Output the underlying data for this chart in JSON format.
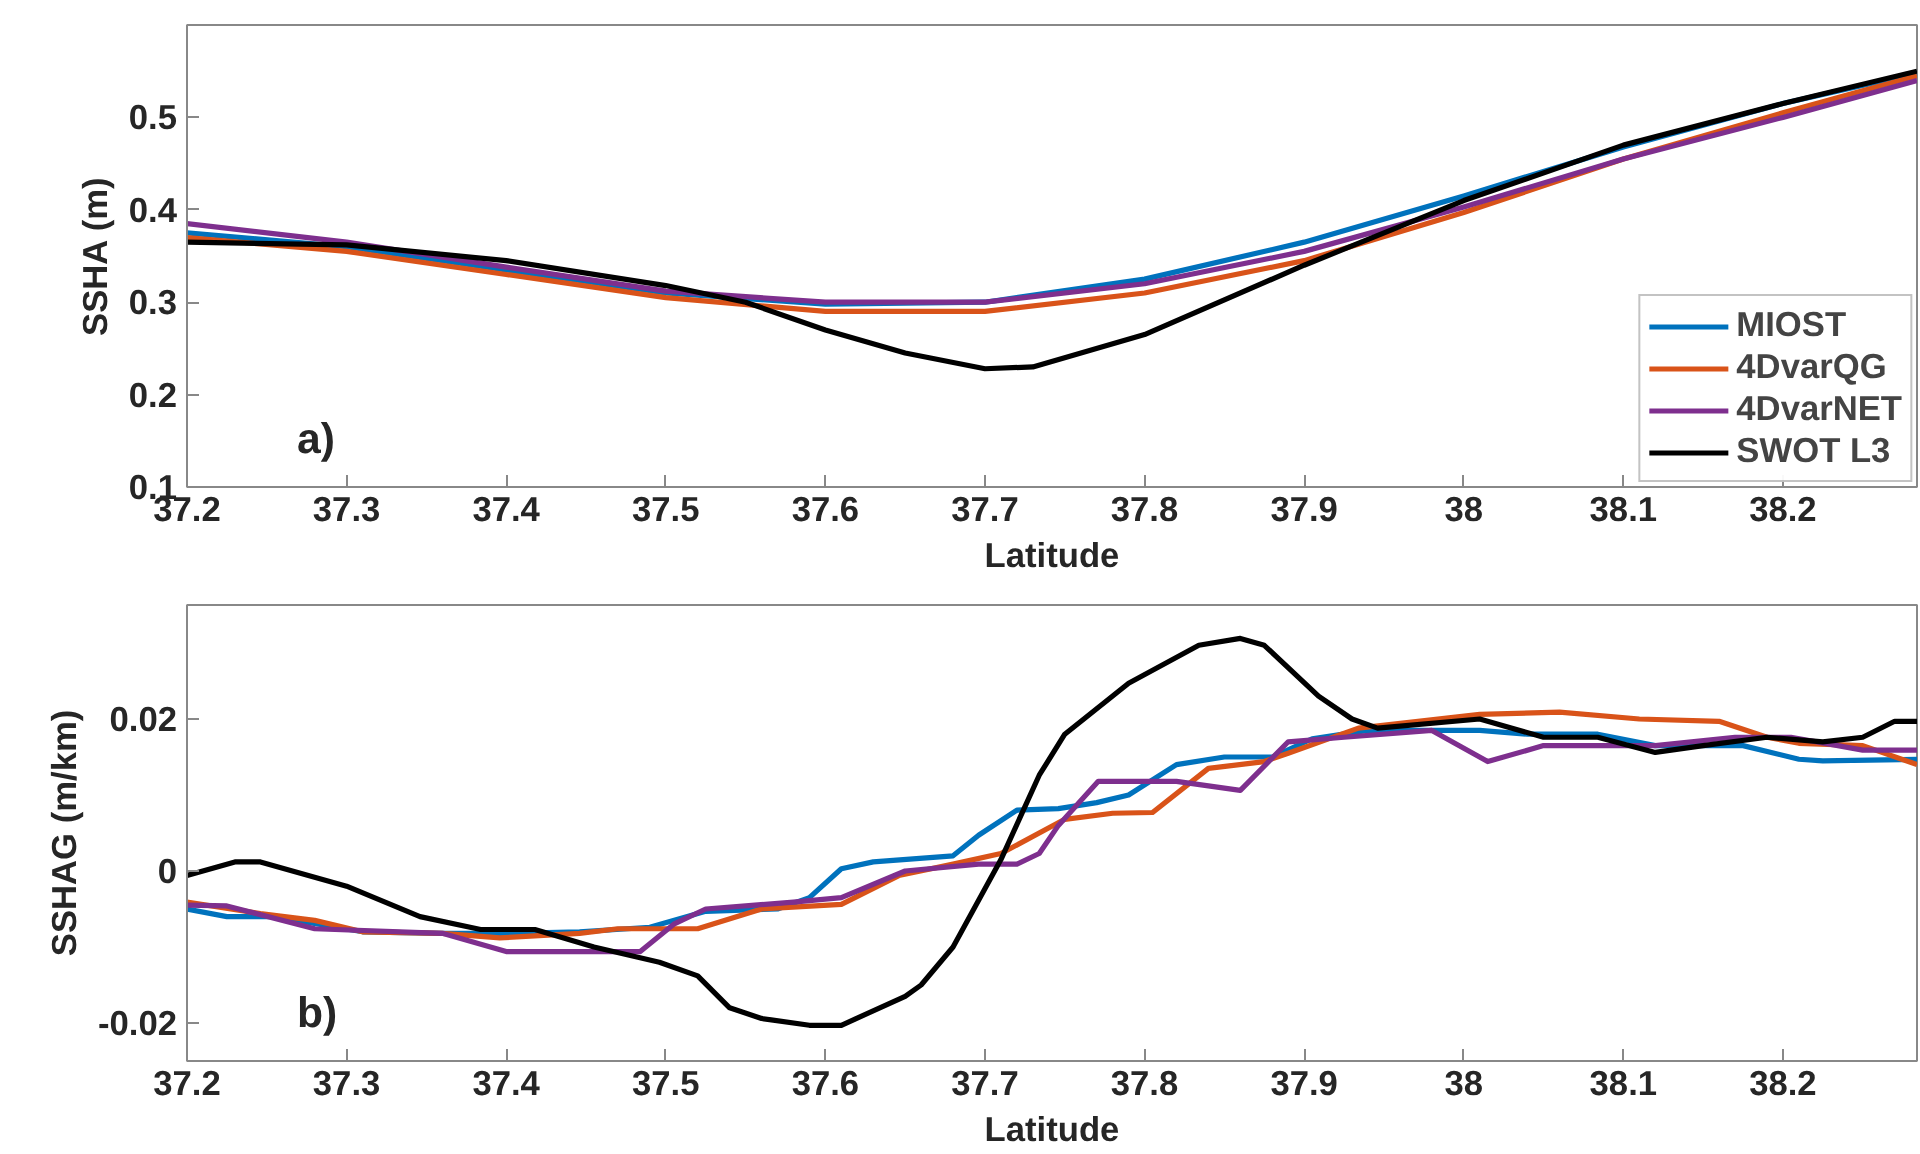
{
  "chart_data": [
    {
      "type": "line",
      "xlabel": "Latitude",
      "ylabel": "SSHA (m)",
      "annotations": [
        "a)"
      ],
      "legend": "bottom right",
      "grid": false,
      "line_style": "solid",
      "xlim": [
        37.2,
        38.284
      ],
      "xticks": [
        37.2,
        37.3,
        37.4,
        37.5,
        37.6,
        37.7,
        37.8,
        37.9,
        38,
        38.1,
        38.2
      ],
      "ylim": [
        0.1,
        0.6
      ],
      "yticks": [
        0.1,
        0.2,
        0.3,
        0.4,
        0.5
      ],
      "series": [
        {
          "name": "MIOST",
          "color": "#0072bd",
          "x": [
            37.2,
            37.3,
            37.4,
            37.5,
            37.6,
            37.7,
            37.8,
            37.9,
            38.0,
            38.1,
            38.2,
            38.284
          ],
          "values": [
            0.375,
            0.36,
            0.335,
            0.31,
            0.298,
            0.3,
            0.325,
            0.365,
            0.415,
            0.468,
            0.515,
            0.548
          ]
        },
        {
          "name": "4DvarQG",
          "color": "#d95319",
          "x": [
            37.2,
            37.3,
            37.4,
            37.5,
            37.6,
            37.7,
            37.8,
            37.9,
            38.0,
            38.1,
            38.2,
            38.284
          ],
          "values": [
            0.37,
            0.355,
            0.33,
            0.305,
            0.29,
            0.29,
            0.31,
            0.345,
            0.397,
            0.455,
            0.505,
            0.545
          ]
        },
        {
          "name": "4DvarNET",
          "color": "#7e2f8e",
          "x": [
            37.2,
            37.3,
            37.4,
            37.5,
            37.6,
            37.7,
            37.8,
            37.9,
            38.0,
            38.1,
            38.2,
            38.284
          ],
          "values": [
            0.385,
            0.365,
            0.338,
            0.312,
            0.3,
            0.3,
            0.32,
            0.355,
            0.403,
            0.455,
            0.5,
            0.54
          ]
        },
        {
          "name": "SWOT L3",
          "color": "#000000",
          "x": [
            37.2,
            37.3,
            37.4,
            37.5,
            37.55,
            37.6,
            37.65,
            37.7,
            37.73,
            37.8,
            37.9,
            38.0,
            38.1,
            38.2,
            38.284
          ],
          "values": [
            0.365,
            0.362,
            0.345,
            0.318,
            0.3,
            0.27,
            0.245,
            0.228,
            0.23,
            0.265,
            0.34,
            0.41,
            0.47,
            0.515,
            0.55
          ]
        }
      ]
    },
    {
      "type": "line",
      "xlabel": "Latitude",
      "ylabel": "SSHAG (m/km)",
      "annotations": [
        "b)"
      ],
      "grid": false,
      "line_style": "solid",
      "xlim": [
        37.2,
        38.284
      ],
      "xticks": [
        37.2,
        37.3,
        37.4,
        37.5,
        37.6,
        37.7,
        37.8,
        37.9,
        38,
        38.1,
        38.2
      ],
      "ylim": [
        -0.025,
        0.035
      ],
      "yticks": [
        -0.02,
        0,
        0.02
      ],
      "series": [
        {
          "color": "#0072bd",
          "x": [
            37.2,
            37.225,
            37.255,
            37.31,
            37.36,
            37.405,
            37.446,
            37.49,
            37.525,
            37.57,
            37.59,
            37.61,
            37.63,
            37.68,
            37.696,
            37.72,
            37.746,
            37.77,
            37.79,
            37.82,
            37.85,
            37.88,
            37.905,
            37.94,
            38.01,
            38.04,
            38.084,
            38.12,
            38.175,
            38.21,
            38.225,
            38.284
          ],
          "values": [
            -0.005,
            -0.006,
            -0.006,
            -0.008,
            -0.0082,
            -0.0082,
            -0.008,
            -0.0074,
            -0.0053,
            -0.005,
            -0.0035,
            0.0003,
            0.0012,
            0.002,
            0.0047,
            0.008,
            0.0082,
            0.009,
            0.01,
            0.014,
            0.015,
            0.015,
            0.0174,
            0.0185,
            0.0185,
            0.018,
            0.018,
            0.0165,
            0.0165,
            0.0147,
            0.0145,
            0.0147
          ]
        },
        {
          "color": "#d95319",
          "x": [
            37.2,
            37.246,
            37.28,
            37.31,
            37.36,
            37.396,
            37.446,
            37.47,
            37.52,
            37.56,
            37.61,
            37.646,
            37.68,
            37.71,
            37.75,
            37.78,
            37.805,
            37.84,
            37.875,
            37.89,
            37.934,
            38.01,
            38.06,
            38.11,
            38.16,
            38.19,
            38.21,
            38.25,
            38.284
          ],
          "values": [
            -0.0041,
            -0.0056,
            -0.0065,
            -0.008,
            -0.0082,
            -0.0088,
            -0.0082,
            -0.0076,
            -0.0076,
            -0.005,
            -0.0044,
            -0.0006,
            0.0009,
            0.0023,
            0.0068,
            0.0076,
            0.0077,
            0.0135,
            0.0144,
            0.0155,
            0.0188,
            0.0206,
            0.0209,
            0.02,
            0.0197,
            0.0176,
            0.0168,
            0.0165,
            0.014
          ]
        },
        {
          "color": "#7e2f8e",
          "x": [
            37.2,
            37.225,
            37.28,
            37.36,
            37.4,
            37.484,
            37.505,
            37.525,
            37.58,
            37.61,
            37.65,
            37.696,
            37.72,
            37.734,
            37.746,
            37.771,
            37.82,
            37.86,
            37.89,
            37.925,
            37.98,
            38.015,
            38.05,
            38.12,
            38.17,
            38.205,
            38.25,
            38.284
          ],
          "values": [
            -0.0045,
            -0.0046,
            -0.0076,
            -0.0082,
            -0.0106,
            -0.0106,
            -0.007,
            -0.005,
            -0.0041,
            -0.0035,
            0.0,
            0.0009,
            0.0009,
            0.0023,
            0.006,
            0.0118,
            0.0118,
            0.0106,
            0.017,
            0.0176,
            0.0185,
            0.0144,
            0.0165,
            0.0165,
            0.0176,
            0.0176,
            0.0159,
            0.0159
          ]
        },
        {
          "color": "#000000",
          "x": [
            37.2,
            37.23,
            37.246,
            37.3,
            37.346,
            37.384,
            37.418,
            37.455,
            37.496,
            37.52,
            37.54,
            37.56,
            37.59,
            37.61,
            37.65,
            37.66,
            37.68,
            37.71,
            37.734,
            37.75,
            37.79,
            37.834,
            37.86,
            37.875,
            37.909,
            37.93,
            37.946,
            38.01,
            38.05,
            38.084,
            38.12,
            38.15,
            38.19,
            38.225,
            38.25,
            38.27,
            38.284
          ],
          "values": [
            -0.0006,
            0.0012,
            0.0012,
            -0.002,
            -0.006,
            -0.0077,
            -0.0077,
            -0.01,
            -0.012,
            -0.0138,
            -0.018,
            -0.0194,
            -0.0203,
            -0.0203,
            -0.0165,
            -0.015,
            -0.01,
            0.0015,
            0.0126,
            0.018,
            0.0247,
            0.0297,
            0.0306,
            0.0297,
            0.023,
            0.02,
            0.0188,
            0.02,
            0.0176,
            0.0176,
            0.0156,
            0.0165,
            0.0176,
            0.017,
            0.0176,
            0.0197,
            0.0197
          ]
        }
      ]
    }
  ]
}
